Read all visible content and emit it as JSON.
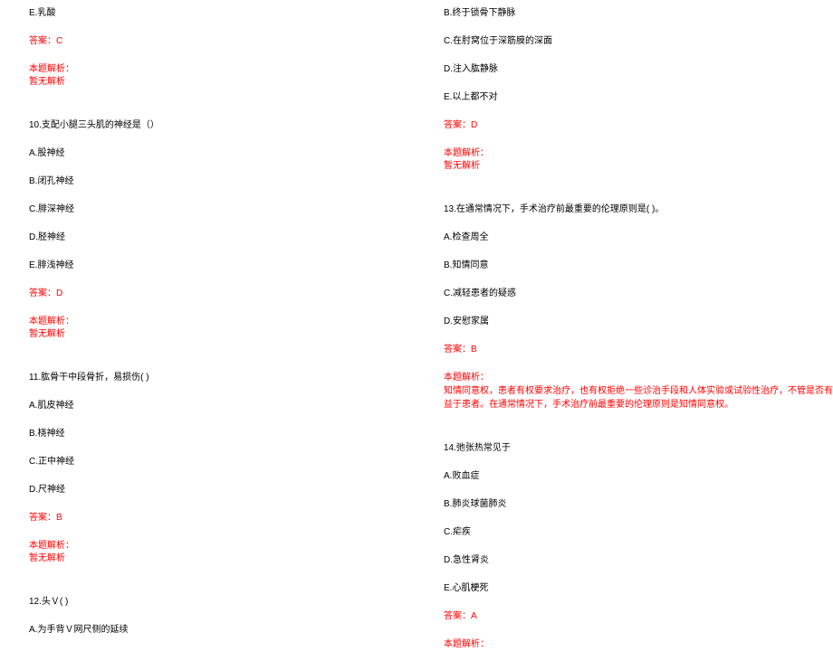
{
  "colors": {
    "text": "#000000",
    "red": "#ff0000",
    "background": "#ffffff"
  },
  "typography": {
    "fontsize": 10,
    "lineheight": 1.4
  },
  "left": {
    "q9_optionE": "E.乳酸",
    "q9_answer": "答案：C",
    "q9_analysis_label": "本题解析：",
    "q9_analysis_content": "暂无解析",
    "q10_stem": "10.支配小腿三头肌的神经是（）",
    "q10_optionA": "A.股神经",
    "q10_optionB": "B.闭孔神经",
    "q10_optionC": "C.腓深神经",
    "q10_optionD": "D.胫神经",
    "q10_optionE": "E.腓浅神经",
    "q10_answer": "答案：D",
    "q10_analysis_label": "本题解析：",
    "q10_analysis_content": "暂无解析",
    "q11_stem": "11.肱骨干中段骨折，易损伤( )",
    "q11_optionA": "A.肌皮神经",
    "q11_optionB": "B.桡神经",
    "q11_optionC": "C.正中神经",
    "q11_optionD": "D.尺神经",
    "q11_answer": "答案：B",
    "q11_analysis_label": "本题解析：",
    "q11_analysis_content": "暂无解析",
    "q12_stem": "12.头Ｖ( )",
    "q12_optionA": "A.为手背Ｖ网尺侧的延续"
  },
  "right": {
    "q12_optionB": "B.终于锁骨下静脉",
    "q12_optionC": "C.在肘窝位于深筋膜的深面",
    "q12_optionD": "D.注入肱静脉",
    "q12_optionE": "E.以上都不对",
    "q12_answer": "答案：D",
    "q12_analysis_label": "本题解析：",
    "q12_analysis_content": "暂无解析",
    "q13_stem": "13.在通常情况下，手术治疗前最重要的伦理原则是( )。",
    "q13_optionA": "A.检查周全",
    "q13_optionB": "B.知情同意",
    "q13_optionC": "C.减轻患者的疑惑",
    "q13_optionD": "D.安慰家属",
    "q13_answer": "答案：B",
    "q13_analysis_label": "本题解析：",
    "q13_analysis_content": "知情同意权，患者有权要求治疗，也有权拒绝一些诊治手段和人体实验或试验性治疗，不管是否有益于患者。在通常情况下，手术治疗前最重要的伦理原则是知情同意权。",
    "q14_stem": "14.弛张热常见于",
    "q14_optionA": "A.败血症",
    "q14_optionB": "B.肺炎球菌肺炎",
    "q14_optionC": "C.疟疾",
    "q14_optionD": "D.急性肾炎",
    "q14_optionE": "E.心肌梗死",
    "q14_answer": "答案：A",
    "q14_analysis_label": "本题解析："
  }
}
